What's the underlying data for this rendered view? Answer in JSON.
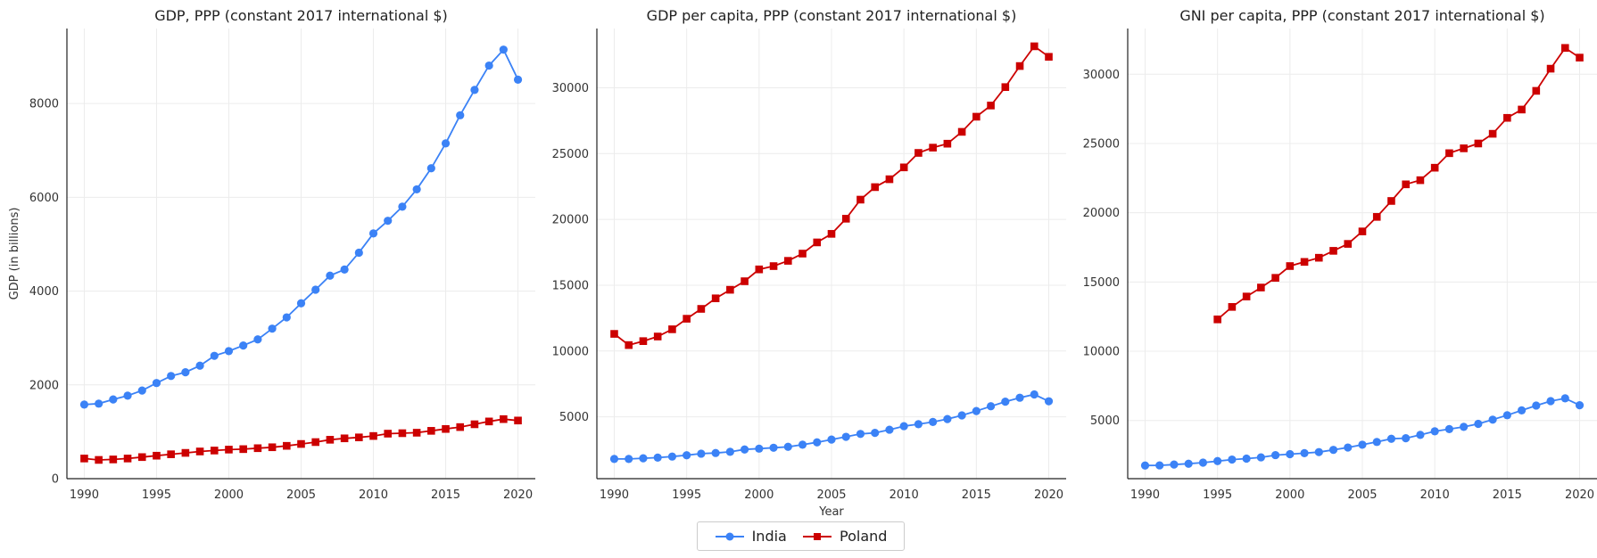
{
  "colors": {
    "india": "#3b82f6",
    "poland": "#cc0000"
  },
  "legend": {
    "placement": "bottom-center",
    "items": [
      {
        "name": "India",
        "marker": "circle",
        "color": "#3b82f6"
      },
      {
        "name": "Poland",
        "marker": "square",
        "color": "#cc0000"
      }
    ]
  },
  "chart_data": [
    {
      "type": "line",
      "title": "GDP, PPP (constant 2017 international $)",
      "xlabel": "",
      "ylabel": "GDP (in billions)",
      "xlim": [
        1988.8,
        2021.2
      ],
      "ylim": [
        0,
        9600
      ],
      "xticks": [
        1990,
        1995,
        2000,
        2005,
        2010,
        2015,
        2020
      ],
      "yticks": [
        0,
        2000,
        4000,
        6000,
        8000
      ],
      "grid": true,
      "x": [
        1990,
        1991,
        1992,
        1993,
        1994,
        1995,
        1996,
        1997,
        1998,
        1999,
        2000,
        2001,
        2002,
        2003,
        2004,
        2005,
        2006,
        2007,
        2008,
        2009,
        2010,
        2011,
        2012,
        2013,
        2014,
        2015,
        2016,
        2017,
        2018,
        2019,
        2020
      ],
      "series": [
        {
          "name": "India",
          "marker": "circle",
          "values": [
            1580,
            1600,
            1690,
            1770,
            1880,
            2040,
            2190,
            2270,
            2410,
            2620,
            2720,
            2840,
            2970,
            3200,
            3440,
            3740,
            4030,
            4330,
            4460,
            4820,
            5230,
            5500,
            5800,
            6170,
            6620,
            7150,
            7750,
            8290,
            8810,
            9150,
            8510
          ]
        },
        {
          "name": "Poland",
          "marker": "square",
          "values": [
            430,
            400,
            410,
            430,
            460,
            490,
            520,
            550,
            580,
            600,
            620,
            630,
            650,
            670,
            700,
            740,
            780,
            830,
            860,
            880,
            910,
            960,
            970,
            980,
            1020,
            1060,
            1100,
            1160,
            1220,
            1270,
            1240
          ]
        }
      ]
    },
    {
      "type": "line",
      "title": "GDP per capita, PPP (constant 2017 international $)",
      "xlabel": "Year",
      "ylabel": "",
      "xlim": [
        1988.8,
        2021.2
      ],
      "ylim": [
        300,
        34500
      ],
      "xticks": [
        1990,
        1995,
        2000,
        2005,
        2010,
        2015,
        2020
      ],
      "yticks": [
        5000,
        10000,
        15000,
        20000,
        25000,
        30000
      ],
      "grid": true,
      "x": [
        1990,
        1991,
        1992,
        1993,
        1994,
        1995,
        1996,
        1997,
        1998,
        1999,
        2000,
        2001,
        2002,
        2003,
        2004,
        2005,
        2006,
        2007,
        2008,
        2009,
        2010,
        2011,
        2012,
        2013,
        2014,
        2015,
        2016,
        2017,
        2018,
        2019,
        2020
      ],
      "series": [
        {
          "name": "India",
          "marker": "circle",
          "values": [
            1800,
            1800,
            1850,
            1900,
            1980,
            2080,
            2200,
            2250,
            2340,
            2520,
            2580,
            2650,
            2720,
            2880,
            3060,
            3270,
            3480,
            3700,
            3780,
            4020,
            4290,
            4440,
            4610,
            4830,
            5110,
            5440,
            5800,
            6150,
            6450,
            6700,
            6180
          ]
        },
        {
          "name": "Poland",
          "marker": "square",
          "values": [
            11300,
            10450,
            10750,
            11100,
            11650,
            12450,
            13200,
            14000,
            14650,
            15300,
            16200,
            16450,
            16850,
            17400,
            18250,
            18900,
            20050,
            21500,
            22450,
            23050,
            23950,
            25050,
            25450,
            25750,
            26650,
            27800,
            28650,
            30050,
            31650,
            33150,
            32350
          ]
        }
      ]
    },
    {
      "type": "line",
      "title": "GNI per capita, PPP (constant 2017 international $)",
      "xlabel": "",
      "ylabel": "",
      "xlim": [
        1988.8,
        2021.2
      ],
      "ylim": [
        800,
        33300
      ],
      "xticks": [
        1990,
        1995,
        2000,
        2005,
        2010,
        2015,
        2020
      ],
      "yticks": [
        5000,
        10000,
        15000,
        20000,
        25000,
        30000
      ],
      "grid": true,
      "x": [
        1990,
        1991,
        1992,
        1993,
        1994,
        1995,
        1996,
        1997,
        1998,
        1999,
        2000,
        2001,
        2002,
        2003,
        2004,
        2005,
        2006,
        2007,
        2008,
        2009,
        2010,
        2011,
        2012,
        2013,
        2014,
        2015,
        2016,
        2017,
        2018,
        2019,
        2020
      ],
      "series": [
        {
          "name": "India",
          "marker": "circle",
          "values": [
            1750,
            1760,
            1820,
            1880,
            1960,
            2070,
            2180,
            2250,
            2340,
            2500,
            2570,
            2640,
            2720,
            2880,
            3050,
            3250,
            3450,
            3680,
            3720,
            3960,
            4220,
            4380,
            4540,
            4760,
            5060,
            5380,
            5730,
            6080,
            6400,
            6600,
            6100
          ]
        },
        {
          "name": "Poland",
          "marker": "square",
          "values": [
            null,
            null,
            null,
            null,
            null,
            12300,
            13200,
            13950,
            14600,
            15300,
            16150,
            16450,
            16750,
            17250,
            17750,
            18650,
            19700,
            20850,
            22050,
            22350,
            23250,
            24300,
            24650,
            25000,
            25700,
            26850,
            27450,
            28800,
            30400,
            31900,
            31200
          ]
        }
      ]
    }
  ]
}
